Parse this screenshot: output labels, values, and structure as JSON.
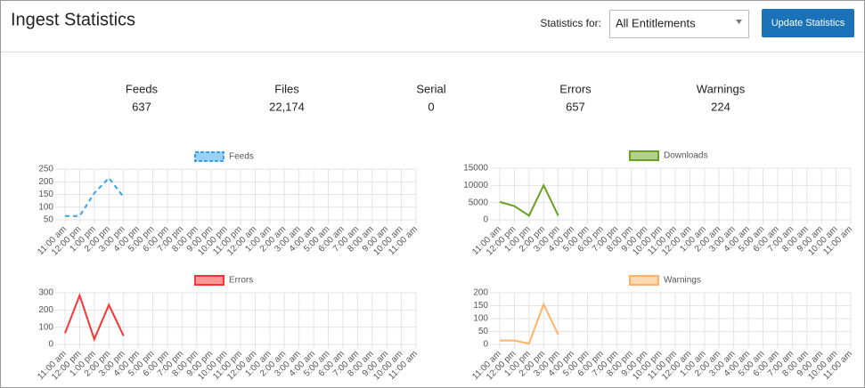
{
  "header": {
    "title": "Ingest Statistics",
    "filter_label": "Statistics for:",
    "filter_value": "All Entitlements",
    "button": "Update Statistics"
  },
  "stats": [
    {
      "label": "Feeds",
      "value": 637
    },
    {
      "label": "Files",
      "value": "22,174"
    },
    {
      "label": "Serial",
      "value": 0
    },
    {
      "label": "Errors",
      "value": 657
    },
    {
      "label": "Warnings",
      "value": 224
    }
  ],
  "chart_data": [
    {
      "type": "line",
      "grid": true,
      "ylim": [
        50,
        250
      ],
      "yticks": [
        50,
        100,
        150,
        200,
        250
      ],
      "categories": [
        "11:00 am",
        "12:00 pm",
        "1:00 pm",
        "2:00 pm",
        "3:00 pm",
        "4:00 pm",
        "5:00 pm",
        "6:00 pm",
        "7:00 pm",
        "8:00 pm",
        "9:00 pm",
        "10:00 pm",
        "11:00 pm",
        "12:00 am",
        "1:00 am",
        "2:00 am",
        "3:00 am",
        "4:00 am",
        "5:00 am",
        "6:00 am",
        "7:00 am",
        "8:00 am",
        "9:00 am",
        "10:00 am",
        "11:00 am"
      ],
      "series": [
        {
          "name": "Feeds",
          "color": "#36a2eb",
          "dashed": true,
          "values": [
            65,
            65,
            155,
            215,
            140,
            null,
            null,
            null,
            null,
            null,
            null,
            null,
            null,
            null,
            null,
            null,
            null,
            null,
            null,
            null,
            null,
            null,
            null,
            null,
            null
          ]
        }
      ]
    },
    {
      "type": "line",
      "grid": true,
      "ylim": [
        0,
        15000
      ],
      "yticks": [
        0,
        5000,
        10000,
        15000
      ],
      "categories": [
        "11:00 am",
        "12:00 pm",
        "1:00 pm",
        "2:00 pm",
        "3:00 pm",
        "4:00 pm",
        "5:00 pm",
        "6:00 pm",
        "7:00 pm",
        "8:00 pm",
        "9:00 pm",
        "10:00 pm",
        "11:00 pm",
        "12:00 am",
        "1:00 am",
        "2:00 am",
        "3:00 am",
        "4:00 am",
        "5:00 am",
        "6:00 am",
        "7:00 am",
        "8:00 am",
        "9:00 am",
        "10:00 am",
        "11:00 am"
      ],
      "series": [
        {
          "name": "Downloads",
          "color": "#6aa121",
          "dashed": false,
          "values": [
            5200,
            4000,
            1200,
            10000,
            1200,
            null,
            null,
            null,
            null,
            null,
            null,
            null,
            null,
            null,
            null,
            null,
            null,
            null,
            null,
            null,
            null,
            null,
            null,
            null,
            null
          ]
        }
      ]
    },
    {
      "type": "line",
      "grid": true,
      "ylim": [
        0,
        300
      ],
      "yticks": [
        0,
        100,
        200,
        300
      ],
      "categories": [
        "11:00 am",
        "12:00 pm",
        "1:00 pm",
        "2:00 pm",
        "3:00 pm",
        "4:00 pm",
        "5:00 pm",
        "6:00 pm",
        "7:00 pm",
        "8:00 pm",
        "9:00 pm",
        "10:00 pm",
        "11:00 pm",
        "12:00 am",
        "1:00 am",
        "2:00 am",
        "3:00 am",
        "4:00 am",
        "5:00 am",
        "6:00 am",
        "7:00 am",
        "8:00 am",
        "9:00 am",
        "10:00 am",
        "11:00 am"
      ],
      "series": [
        {
          "name": "Errors",
          "color": "#ff3333",
          "dashed": false,
          "values": [
            65,
            285,
            30,
            230,
            50,
            null,
            null,
            null,
            null,
            null,
            null,
            null,
            null,
            null,
            null,
            null,
            null,
            null,
            null,
            null,
            null,
            null,
            null,
            null,
            null
          ]
        }
      ]
    },
    {
      "type": "line",
      "grid": true,
      "ylim": [
        0,
        200
      ],
      "yticks": [
        0,
        50,
        100,
        150,
        200
      ],
      "categories": [
        "11:00 am",
        "12:00 pm",
        "1:00 pm",
        "2:00 pm",
        "3:00 pm",
        "4:00 pm",
        "5:00 pm",
        "6:00 pm",
        "7:00 pm",
        "8:00 pm",
        "9:00 pm",
        "10:00 pm",
        "11:00 pm",
        "12:00 am",
        "1:00 am",
        "2:00 am",
        "3:00 am",
        "4:00 am",
        "5:00 am",
        "6:00 am",
        "7:00 am",
        "8:00 am",
        "9:00 am",
        "10:00 am",
        "11:00 am"
      ],
      "series": [
        {
          "name": "Warnings",
          "color": "#ffb366",
          "dashed": false,
          "values": [
            15,
            15,
            3,
            155,
            38,
            null,
            null,
            null,
            null,
            null,
            null,
            null,
            null,
            null,
            null,
            null,
            null,
            null,
            null,
            null,
            null,
            null,
            null,
            null,
            null
          ]
        }
      ]
    }
  ]
}
